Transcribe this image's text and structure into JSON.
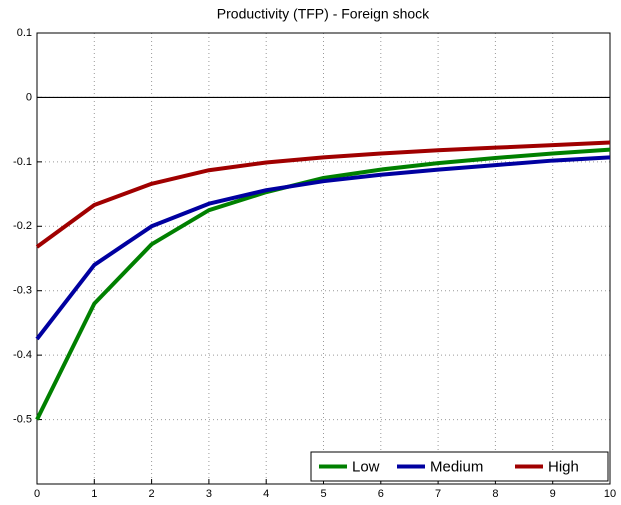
{
  "chart_data": {
    "type": "line",
    "title": "Productivity (TFP) - Foreign shock",
    "x": [
      0,
      1,
      2,
      3,
      4,
      5,
      6,
      7,
      8,
      9,
      10
    ],
    "series": [
      {
        "name": "Low",
        "color": "#008000",
        "values": [
          -0.5,
          -0.32,
          -0.228,
          -0.175,
          -0.147,
          -0.125,
          -0.112,
          -0.102,
          -0.094,
          -0.087,
          -0.081
        ]
      },
      {
        "name": "Medium",
        "color": "#0000a0",
        "values": [
          -0.375,
          -0.26,
          -0.2,
          -0.165,
          -0.144,
          -0.13,
          -0.12,
          -0.112,
          -0.105,
          -0.098,
          -0.093
        ]
      },
      {
        "name": "High",
        "color": "#a00000",
        "values": [
          -0.232,
          -0.167,
          -0.134,
          -0.113,
          -0.101,
          -0.093,
          -0.087,
          -0.082,
          -0.078,
          -0.074,
          -0.07
        ]
      }
    ],
    "xlim": [
      0,
      10
    ],
    "xticks": [
      0,
      1,
      2,
      3,
      4,
      5,
      6,
      7,
      8,
      9,
      10
    ],
    "ylim": [
      -0.6,
      0.1
    ],
    "yticks": [
      -0.5,
      -0.4,
      -0.3,
      -0.2,
      -0.1,
      0,
      0.1
    ],
    "grid": true,
    "zero_line": 0,
    "legend_position": "lower right"
  }
}
